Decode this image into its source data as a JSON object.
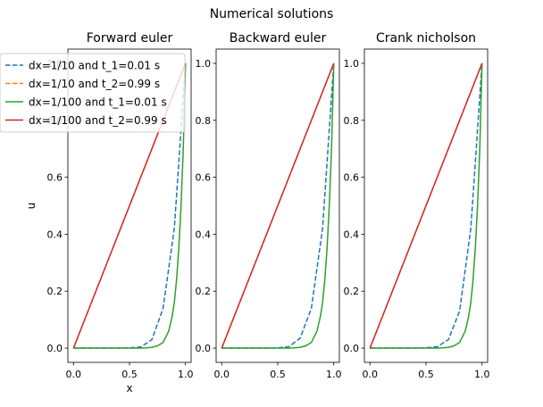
{
  "figure": {
    "suptitle": "Numerical solutions"
  },
  "chart_data": [
    {
      "type": "line",
      "title": "Forward euler",
      "xlabel": "x",
      "ylabel": "u",
      "xlim": [
        -0.05,
        1.05
      ],
      "ylim": [
        -0.05,
        1.05
      ],
      "xticks": [
        "0.0",
        "0.5",
        "1.0"
      ],
      "yticks": [
        "0.0",
        "0.2",
        "0.4",
        "0.6",
        "0.8",
        "1.0"
      ],
      "legend": {
        "placement": "upper-left",
        "entries": [
          "dx=1/10 and t_1=0.01 s",
          "dx=1/10 and t_2=0.99 s",
          "dx=1/100 and t_1=0.01 s",
          "dx=1/100 and t_2=0.99 s"
        ]
      },
      "series": [
        {
          "name": "dx=1/10 and t_1=0.01 s",
          "color": "#1f77b4",
          "style": "dashed",
          "x": [
            0.0,
            0.1,
            0.2,
            0.3,
            0.4,
            0.5,
            0.6,
            0.7,
            0.8,
            0.9,
            1.0
          ],
          "y": [
            0.0,
            0.0,
            0.0,
            0.0,
            0.0,
            0.001,
            0.004,
            0.03,
            0.14,
            0.42,
            1.0
          ]
        },
        {
          "name": "dx=1/10 and t_2=0.99 s",
          "color": "#ff7f0e",
          "style": "dashed",
          "x": [
            0.0,
            0.1,
            0.2,
            0.3,
            0.4,
            0.5,
            0.6,
            0.7,
            0.8,
            0.9,
            1.0
          ],
          "y": [
            0.0,
            0.1,
            0.2,
            0.3,
            0.4,
            0.5,
            0.6,
            0.7,
            0.8,
            0.9,
            1.0
          ]
        },
        {
          "name": "dx=1/100 and t_1=0.01 s",
          "color": "#2ca02c",
          "style": "solid",
          "x": [
            0.0,
            0.6,
            0.65,
            0.7,
            0.75,
            0.8,
            0.85,
            0.88,
            0.9,
            0.92,
            0.94,
            0.96,
            0.98,
            1.0
          ],
          "y": [
            0.0,
            0.0,
            0.001,
            0.003,
            0.008,
            0.02,
            0.06,
            0.11,
            0.16,
            0.24,
            0.35,
            0.5,
            0.7,
            1.0
          ]
        },
        {
          "name": "dx=1/100 and t_2=0.99 s",
          "color": "#d62728",
          "style": "solid",
          "x": [
            0.0,
            1.0
          ],
          "y": [
            0.0,
            1.0
          ]
        }
      ]
    },
    {
      "type": "line",
      "title": "Backward euler",
      "xlabel": "",
      "ylabel": "",
      "xlim": [
        -0.05,
        1.05
      ],
      "ylim": [
        -0.05,
        1.05
      ],
      "xticks": [
        "0.0",
        "0.5",
        "1.0"
      ],
      "yticks": [
        "0.0",
        "0.2",
        "0.4",
        "0.6",
        "0.8",
        "1.0"
      ],
      "series": [
        {
          "name": "dx=1/10 and t_1=0.01 s",
          "color": "#1f77b4",
          "style": "dashed",
          "x": [
            0.0,
            0.1,
            0.2,
            0.3,
            0.4,
            0.5,
            0.6,
            0.7,
            0.8,
            0.9,
            1.0
          ],
          "y": [
            0.0,
            0.0,
            0.0,
            0.0,
            0.0,
            0.001,
            0.005,
            0.035,
            0.14,
            0.42,
            1.0
          ]
        },
        {
          "name": "dx=1/10 and t_2=0.99 s",
          "color": "#ff7f0e",
          "style": "dashed",
          "x": [
            0.0,
            0.1,
            0.2,
            0.3,
            0.4,
            0.5,
            0.6,
            0.7,
            0.8,
            0.9,
            1.0
          ],
          "y": [
            0.0,
            0.1,
            0.2,
            0.3,
            0.4,
            0.5,
            0.6,
            0.7,
            0.8,
            0.9,
            1.0
          ]
        },
        {
          "name": "dx=1/100 and t_1=0.01 s",
          "color": "#2ca02c",
          "style": "solid",
          "x": [
            0.0,
            0.6,
            0.65,
            0.7,
            0.75,
            0.8,
            0.85,
            0.88,
            0.9,
            0.92,
            0.94,
            0.96,
            0.98,
            1.0
          ],
          "y": [
            0.0,
            0.0,
            0.001,
            0.003,
            0.008,
            0.02,
            0.06,
            0.11,
            0.16,
            0.24,
            0.35,
            0.5,
            0.7,
            1.0
          ]
        },
        {
          "name": "dx=1/100 and t_2=0.99 s",
          "color": "#d62728",
          "style": "solid",
          "x": [
            0.0,
            1.0
          ],
          "y": [
            0.0,
            1.0
          ]
        }
      ]
    },
    {
      "type": "line",
      "title": "Crank nicholson",
      "xlabel": "",
      "ylabel": "",
      "xlim": [
        -0.05,
        1.05
      ],
      "ylim": [
        -0.05,
        1.05
      ],
      "xticks": [
        "0.0",
        "0.5",
        "1.0"
      ],
      "yticks": [
        "0.0",
        "0.2",
        "0.4",
        "0.6",
        "0.8",
        "1.0"
      ],
      "series": [
        {
          "name": "dx=1/10 and t_1=0.01 s",
          "color": "#1f77b4",
          "style": "dashed",
          "x": [
            0.0,
            0.1,
            0.2,
            0.3,
            0.4,
            0.5,
            0.6,
            0.7,
            0.8,
            0.9,
            1.0
          ],
          "y": [
            0.0,
            0.0,
            0.0,
            0.0,
            0.0,
            0.001,
            0.005,
            0.03,
            0.13,
            0.42,
            1.0
          ]
        },
        {
          "name": "dx=1/10 and t_2=0.99 s",
          "color": "#ff7f0e",
          "style": "dashed",
          "x": [
            0.0,
            0.1,
            0.2,
            0.3,
            0.4,
            0.5,
            0.6,
            0.7,
            0.8,
            0.9,
            1.0
          ],
          "y": [
            0.0,
            0.1,
            0.2,
            0.3,
            0.4,
            0.5,
            0.6,
            0.7,
            0.8,
            0.9,
            1.0
          ]
        },
        {
          "name": "dx=1/100 and t_1=0.01 s",
          "color": "#2ca02c",
          "style": "solid",
          "x": [
            0.0,
            0.6,
            0.65,
            0.7,
            0.75,
            0.8,
            0.85,
            0.88,
            0.9,
            0.92,
            0.94,
            0.96,
            0.98,
            1.0
          ],
          "y": [
            0.0,
            0.0,
            0.001,
            0.003,
            0.008,
            0.02,
            0.06,
            0.11,
            0.16,
            0.24,
            0.35,
            0.5,
            0.7,
            1.0
          ]
        },
        {
          "name": "dx=1/100 and t_2=0.99 s",
          "color": "#d62728",
          "style": "solid",
          "x": [
            0.0,
            1.0
          ],
          "y": [
            0.0,
            1.0
          ]
        }
      ]
    }
  ]
}
